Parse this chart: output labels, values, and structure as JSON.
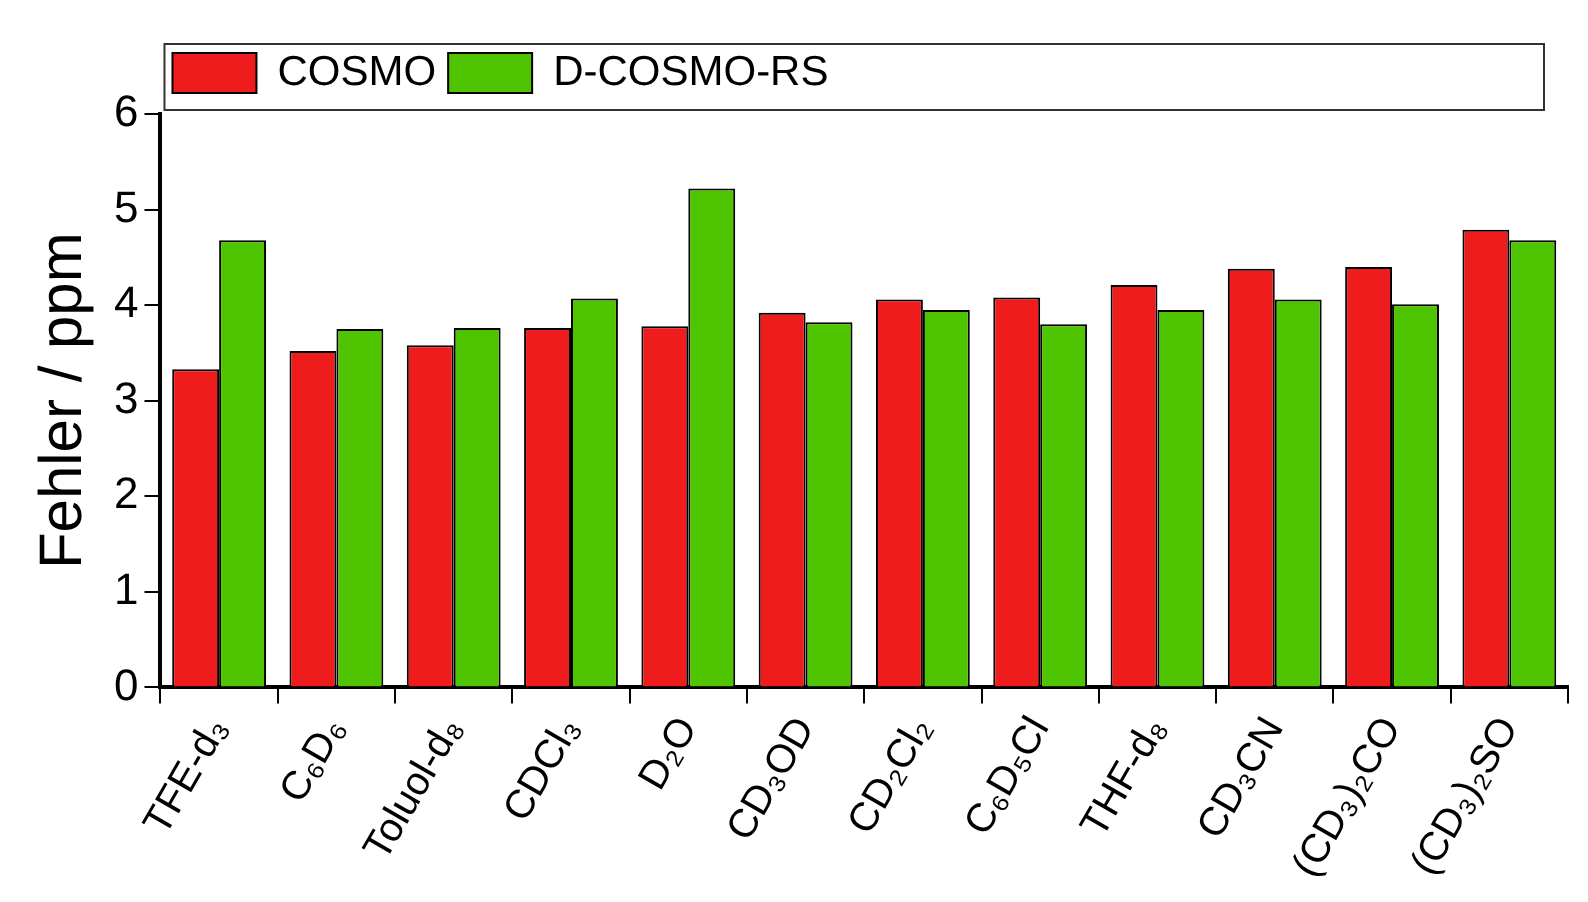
{
  "chart_data": {
    "type": "bar",
    "ylabel": "Fehler / ppm",
    "categories": [
      "TFE-d₃",
      "C₆D₆",
      "Toluol-d₈",
      "CDCl₃",
      "D₂O",
      "CD₃OD",
      "CD₂Cl₂",
      "C₆D₅Cl",
      "THF-d₈",
      "CD₃CN",
      "(CD₃)₂CO",
      "(CD₃)₂SO"
    ],
    "series": [
      {
        "name": "COSMO",
        "color": "#ee1c1c",
        "values": [
          3.33,
          3.52,
          3.58,
          3.76,
          3.78,
          3.92,
          4.06,
          4.08,
          4.21,
          4.38,
          4.4,
          4.79
        ]
      },
      {
        "name": "D-COSMO-RS",
        "color": "#4fc400",
        "values": [
          4.68,
          3.75,
          3.76,
          4.07,
          5.22,
          3.82,
          3.95,
          3.8,
          3.95,
          4.06,
          4.01,
          4.68
        ]
      }
    ],
    "ylim": [
      0,
      6
    ],
    "yticks": [
      0,
      1,
      2,
      3,
      4,
      5,
      6
    ],
    "grid": false,
    "legend": "top left"
  }
}
